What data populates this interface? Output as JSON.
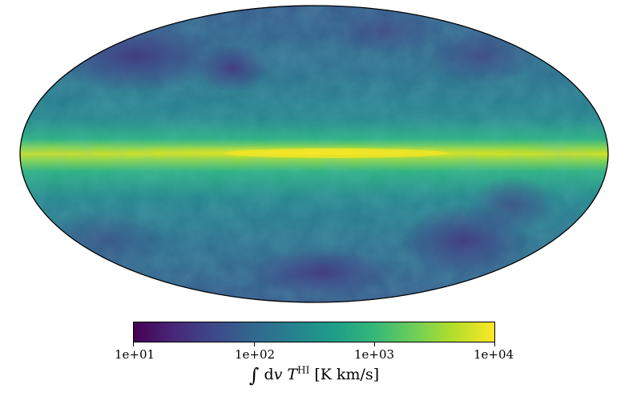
{
  "colormap": {
    "name": "viridis",
    "stops": [
      "#440154",
      "#482878",
      "#3e4989",
      "#31688e",
      "#26828e",
      "#1f9e89",
      "#35b779",
      "#6ece58",
      "#b5de2b",
      "#fde725"
    ]
  },
  "map": {
    "projection": "mollweide",
    "background_color": "#2a788e",
    "band_color": "#d0e11c",
    "outline_color": "#000000"
  },
  "colorbar": {
    "scale": "log",
    "ticks": [
      "1e+01",
      "1e+02",
      "1e+03",
      "1e+04"
    ],
    "label_integral": "∫",
    "label_dv": "d",
    "label_v": "v",
    "label_T": "T",
    "label_sup": "HI",
    "label_units": " [K km/s]"
  }
}
